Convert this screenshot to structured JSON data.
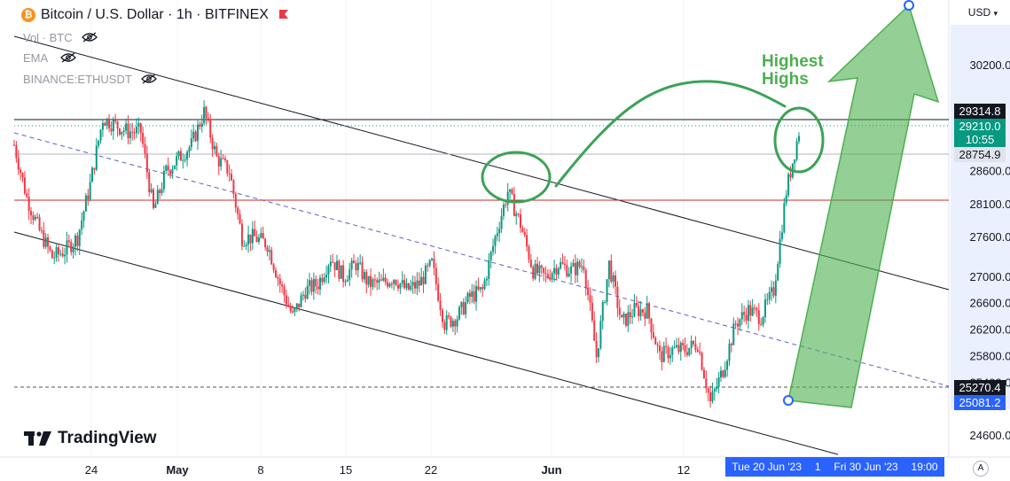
{
  "header": {
    "symbol_title": "Bitcoin / U.S. Dollar · 1h · BITFINEX",
    "logo_glyph": "₿",
    "indicators": [
      {
        "label": "Vol · BTC"
      },
      {
        "label": "EMA"
      },
      {
        "label": "BINANCE:ETHUSDT"
      }
    ]
  },
  "currency_selector": "USD",
  "brand": "TradingView",
  "axis_auto_label": "A",
  "x_axis_range_bar": {
    "start": "Tue 20 Jun '23",
    "duration": "1",
    "end": "Fri 30 Jun '23",
    "time": "19:00"
  },
  "price_badges": {
    "upper_line": "29314.8",
    "last_price": "29210.0",
    "countdown": "10:55",
    "mid_line": "28754.9",
    "lower_line": "25270.4",
    "range_start": "25081.2"
  },
  "annotation": {
    "line1": "Highest",
    "line2": "Highs"
  },
  "colors": {
    "up": "#089981",
    "down": "#f23645",
    "annotation_green": "#4caf50",
    "highlight_blue": "#2962ff",
    "horizontal_red": "#c62828"
  },
  "chart_data": {
    "type": "candlestick",
    "title": "Bitcoin / U.S. Dollar · 1h · BITFINEX",
    "y_ticks": [
      24600,
      25400,
      25800,
      26200,
      26600,
      27000,
      27600,
      28100,
      28600,
      30200
    ],
    "x_ticks": [
      "24",
      "May",
      "8",
      "15",
      "22",
      "Jun",
      "12"
    ],
    "ylim": [
      24300,
      31400
    ],
    "horizontal_lines": [
      29314.8,
      28754.9,
      28100,
      25270.4
    ],
    "price_path": [
      {
        "x": "Apr 20",
        "y": 29000
      },
      {
        "x": "Apr 21",
        "y": 28200
      },
      {
        "x": "Apr 22",
        "y": 27700
      },
      {
        "x": "Apr 23",
        "y": 27300
      },
      {
        "x": "Apr 24",
        "y": 27400
      },
      {
        "x": "Apr 25",
        "y": 27600
      },
      {
        "x": "Apr 26",
        "y": 28400
      },
      {
        "x": "Apr 27",
        "y": 29400
      },
      {
        "x": "Apr 28",
        "y": 29300
      },
      {
        "x": "Apr 29",
        "y": 29200
      },
      {
        "x": "Apr 30",
        "y": 29200
      },
      {
        "x": "May 1",
        "y": 28000
      },
      {
        "x": "May 2",
        "y": 28600
      },
      {
        "x": "May 3",
        "y": 28800
      },
      {
        "x": "May 4",
        "y": 29000
      },
      {
        "x": "May 5",
        "y": 29500
      },
      {
        "x": "May 6",
        "y": 28800
      },
      {
        "x": "May 7",
        "y": 28600
      },
      {
        "x": "May 8",
        "y": 27600
      },
      {
        "x": "May 9",
        "y": 27600
      },
      {
        "x": "May 10",
        "y": 27500
      },
      {
        "x": "May 11",
        "y": 26900
      },
      {
        "x": "May 12",
        "y": 26400
      },
      {
        "x": "May 13",
        "y": 26800
      },
      {
        "x": "May 14",
        "y": 26900
      },
      {
        "x": "May 15",
        "y": 27300
      },
      {
        "x": "May 16",
        "y": 27000
      },
      {
        "x": "May 17",
        "y": 27200
      },
      {
        "x": "May 18",
        "y": 26900
      },
      {
        "x": "May 19",
        "y": 26900
      },
      {
        "x": "May 20",
        "y": 27000
      },
      {
        "x": "May 21",
        "y": 26800
      },
      {
        "x": "May 22",
        "y": 26900
      },
      {
        "x": "May 23",
        "y": 27200
      },
      {
        "x": "May 24",
        "y": 26300
      },
      {
        "x": "May 25",
        "y": 26400
      },
      {
        "x": "May 26",
        "y": 26700
      },
      {
        "x": "May 27",
        "y": 26800
      },
      {
        "x": "May 28",
        "y": 27600
      },
      {
        "x": "May 29",
        "y": 28300
      },
      {
        "x": "May 30",
        "y": 27800
      },
      {
        "x": "May 31",
        "y": 27100
      },
      {
        "x": "Jun 1",
        "y": 27000
      },
      {
        "x": "Jun 2",
        "y": 27200
      },
      {
        "x": "Jun 3",
        "y": 27100
      },
      {
        "x": "Jun 4",
        "y": 27200
      },
      {
        "x": "Jun 5",
        "y": 25800
      },
      {
        "x": "Jun 6",
        "y": 27200
      },
      {
        "x": "Jun 7",
        "y": 26300
      },
      {
        "x": "Jun 8",
        "y": 26500
      },
      {
        "x": "Jun 9",
        "y": 26500
      },
      {
        "x": "Jun 10",
        "y": 25800
      },
      {
        "x": "Jun 11",
        "y": 25900
      },
      {
        "x": "Jun 12",
        "y": 25900
      },
      {
        "x": "Jun 13",
        "y": 26000
      },
      {
        "x": "Jun 14",
        "y": 25100
      },
      {
        "x": "Jun 15",
        "y": 25600
      },
      {
        "x": "Jun 16",
        "y": 26300
      },
      {
        "x": "Jun 17",
        "y": 26500
      },
      {
        "x": "Jun 18",
        "y": 26400
      },
      {
        "x": "Jun 19",
        "y": 26800
      },
      {
        "x": "Jun 20",
        "y": 28300
      },
      {
        "x": "Jun 21",
        "y": 29200
      }
    ]
  }
}
